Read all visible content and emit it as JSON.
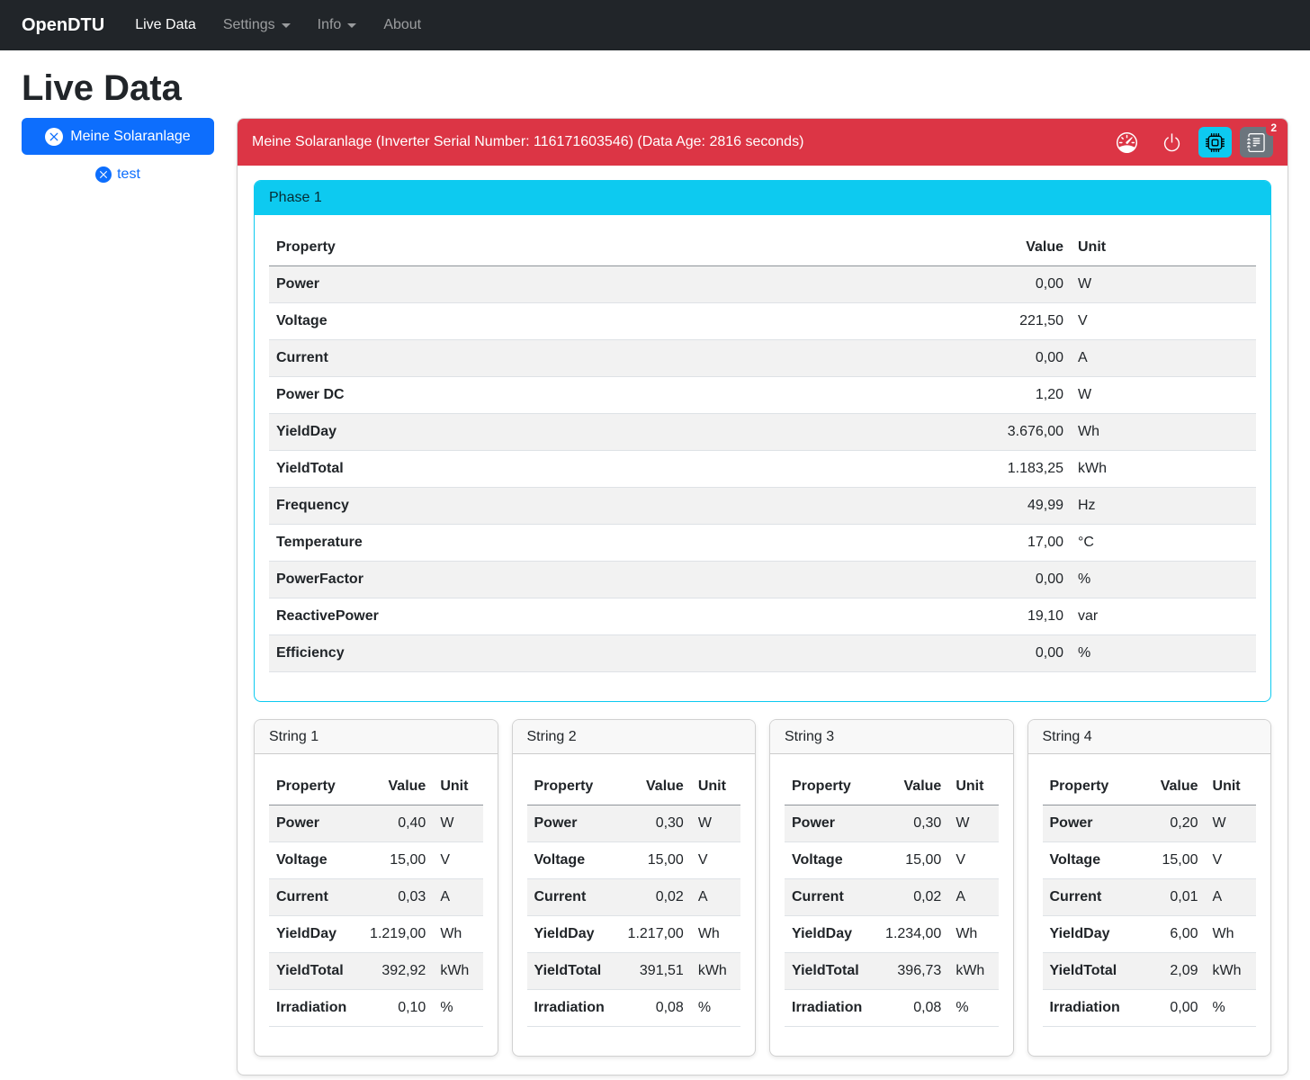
{
  "navbar": {
    "brand": "OpenDTU",
    "items": [
      {
        "label": "Live Data",
        "active": true,
        "dropdown": false
      },
      {
        "label": "Settings",
        "active": false,
        "dropdown": true
      },
      {
        "label": "Info",
        "active": false,
        "dropdown": true
      },
      {
        "label": "About",
        "active": false,
        "dropdown": false
      }
    ]
  },
  "page": {
    "title": "Live Data"
  },
  "sidebar": {
    "inverter_button_label": "Meine Solaranlage",
    "test_link_label": "test"
  },
  "inverter_card": {
    "header_title": "Meine Solaranlage (Inverter Serial Number: 116171603546) (Data Age: 2816 seconds)",
    "event_badge_count": "2",
    "icons": [
      "speedometer-icon",
      "power-icon",
      "cpu-icon",
      "journal-text-icon"
    ]
  },
  "table_columns": {
    "property": "Property",
    "value": "Value",
    "unit": "Unit"
  },
  "phase": {
    "title": "Phase 1",
    "rows": [
      [
        "Power",
        "0,00",
        "W"
      ],
      [
        "Voltage",
        "221,50",
        "V"
      ],
      [
        "Current",
        "0,00",
        "A"
      ],
      [
        "Power DC",
        "1,20",
        "W"
      ],
      [
        "YieldDay",
        "3.676,00",
        "Wh"
      ],
      [
        "YieldTotal",
        "1.183,25",
        "kWh"
      ],
      [
        "Frequency",
        "49,99",
        "Hz"
      ],
      [
        "Temperature",
        "17,00",
        "°C"
      ],
      [
        "PowerFactor",
        "0,00",
        "%"
      ],
      [
        "ReactivePower",
        "19,10",
        "var"
      ],
      [
        "Efficiency",
        "0,00",
        "%"
      ]
    ]
  },
  "strings": [
    {
      "title": "String 1",
      "rows": [
        [
          "Power",
          "0,40",
          "W"
        ],
        [
          "Voltage",
          "15,00",
          "V"
        ],
        [
          "Current",
          "0,03",
          "A"
        ],
        [
          "YieldDay",
          "1.219,00",
          "Wh"
        ],
        [
          "YieldTotal",
          "392,92",
          "kWh"
        ],
        [
          "Irradiation",
          "0,10",
          "%"
        ]
      ]
    },
    {
      "title": "String 2",
      "rows": [
        [
          "Power",
          "0,30",
          "W"
        ],
        [
          "Voltage",
          "15,00",
          "V"
        ],
        [
          "Current",
          "0,02",
          "A"
        ],
        [
          "YieldDay",
          "1.217,00",
          "Wh"
        ],
        [
          "YieldTotal",
          "391,51",
          "kWh"
        ],
        [
          "Irradiation",
          "0,08",
          "%"
        ]
      ]
    },
    {
      "title": "String 3",
      "rows": [
        [
          "Power",
          "0,30",
          "W"
        ],
        [
          "Voltage",
          "15,00",
          "V"
        ],
        [
          "Current",
          "0,02",
          "A"
        ],
        [
          "YieldDay",
          "1.234,00",
          "Wh"
        ],
        [
          "YieldTotal",
          "396,73",
          "kWh"
        ],
        [
          "Irradiation",
          "0,08",
          "%"
        ]
      ]
    },
    {
      "title": "String 4",
      "rows": [
        [
          "Power",
          "0,20",
          "W"
        ],
        [
          "Voltage",
          "15,00",
          "V"
        ],
        [
          "Current",
          "0,01",
          "A"
        ],
        [
          "YieldDay",
          "6,00",
          "Wh"
        ],
        [
          "YieldTotal",
          "2,09",
          "kWh"
        ],
        [
          "Irradiation",
          "0,00",
          "%"
        ]
      ]
    }
  ],
  "colors": {
    "navbar_bg": "#212529",
    "primary": "#0d6efd",
    "danger": "#dc3545",
    "info": "#0dcaf0",
    "secondary": "#6c757d"
  }
}
